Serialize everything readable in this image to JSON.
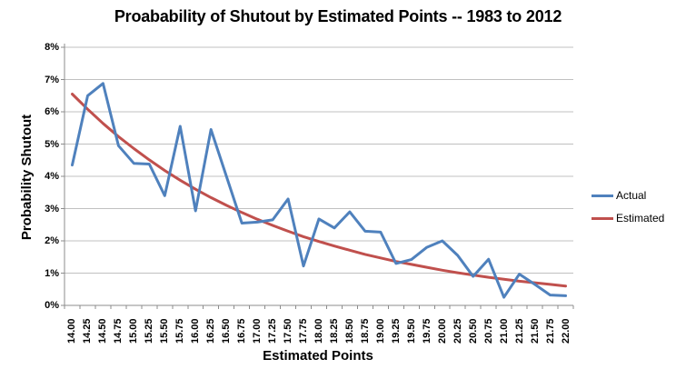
{
  "title": "Proabability of Shutout by Estimated Points -- 1983 to 2012",
  "y_axis": {
    "title": "Probability Shutout",
    "tick_labels": [
      "0%",
      "1%",
      "2%",
      "3%",
      "4%",
      "5%",
      "6%",
      "7%",
      "8%"
    ],
    "min": 0,
    "max": 8
  },
  "x_axis": {
    "title": "Estimated Points"
  },
  "legend": [
    {
      "label": "Actual",
      "color": "#4F81BD"
    },
    {
      "label": "Estimated",
      "color": "#C0504D"
    }
  ],
  "colors": {
    "actual_line": "#4F81BD",
    "estimated_line": "#C0504D",
    "gridline": "#C0C0C0",
    "axis": "#8C8C8C",
    "text": "#000000",
    "background": "#FFFFFF"
  },
  "chart_data": {
    "type": "line",
    "title": "Proabability of Shutout by Estimated Points -- 1983 to 2012",
    "xlabel": "Estimated Points",
    "ylabel": "Probability Shutout",
    "ylim": [
      0,
      8
    ],
    "y_unit": "%",
    "grid": "horizontal",
    "legend_position": "right",
    "categories": [
      "14.00",
      "14.25",
      "14.50",
      "14.75",
      "15.00",
      "15.25",
      "15.50",
      "15.75",
      "16.00",
      "16.25",
      "16.50",
      "16.75",
      "17.00",
      "17.25",
      "17.50",
      "17.75",
      "18.00",
      "18.25",
      "18.50",
      "18.75",
      "19.00",
      "19.25",
      "19.50",
      "19.75",
      "20.00",
      "20.25",
      "20.50",
      "20.75",
      "21.00",
      "21.25",
      "21.50",
      "21.75",
      "22.00"
    ],
    "series": [
      {
        "name": "Actual",
        "color": "#4F81BD",
        "values": [
          4.35,
          6.5,
          6.88,
          4.95,
          4.4,
          4.38,
          3.4,
          5.55,
          2.93,
          5.45,
          4.0,
          2.55,
          2.58,
          2.65,
          3.3,
          1.22,
          2.68,
          2.4,
          2.9,
          2.3,
          2.27,
          1.3,
          1.42,
          1.8,
          2.0,
          1.55,
          0.9,
          1.43,
          0.25,
          0.97,
          0.65,
          0.32,
          0.3
        ]
      },
      {
        "name": "Estimated",
        "color": "#C0504D",
        "values": [
          6.55,
          6.08,
          5.64,
          5.23,
          4.86,
          4.51,
          4.18,
          3.88,
          3.6,
          3.34,
          3.1,
          2.88,
          2.67,
          2.48,
          2.3,
          2.13,
          1.98,
          1.84,
          1.71,
          1.58,
          1.47,
          1.36,
          1.27,
          1.18,
          1.09,
          1.01,
          0.94,
          0.87,
          0.81,
          0.75,
          0.7,
          0.65,
          0.6
        ]
      }
    ]
  }
}
